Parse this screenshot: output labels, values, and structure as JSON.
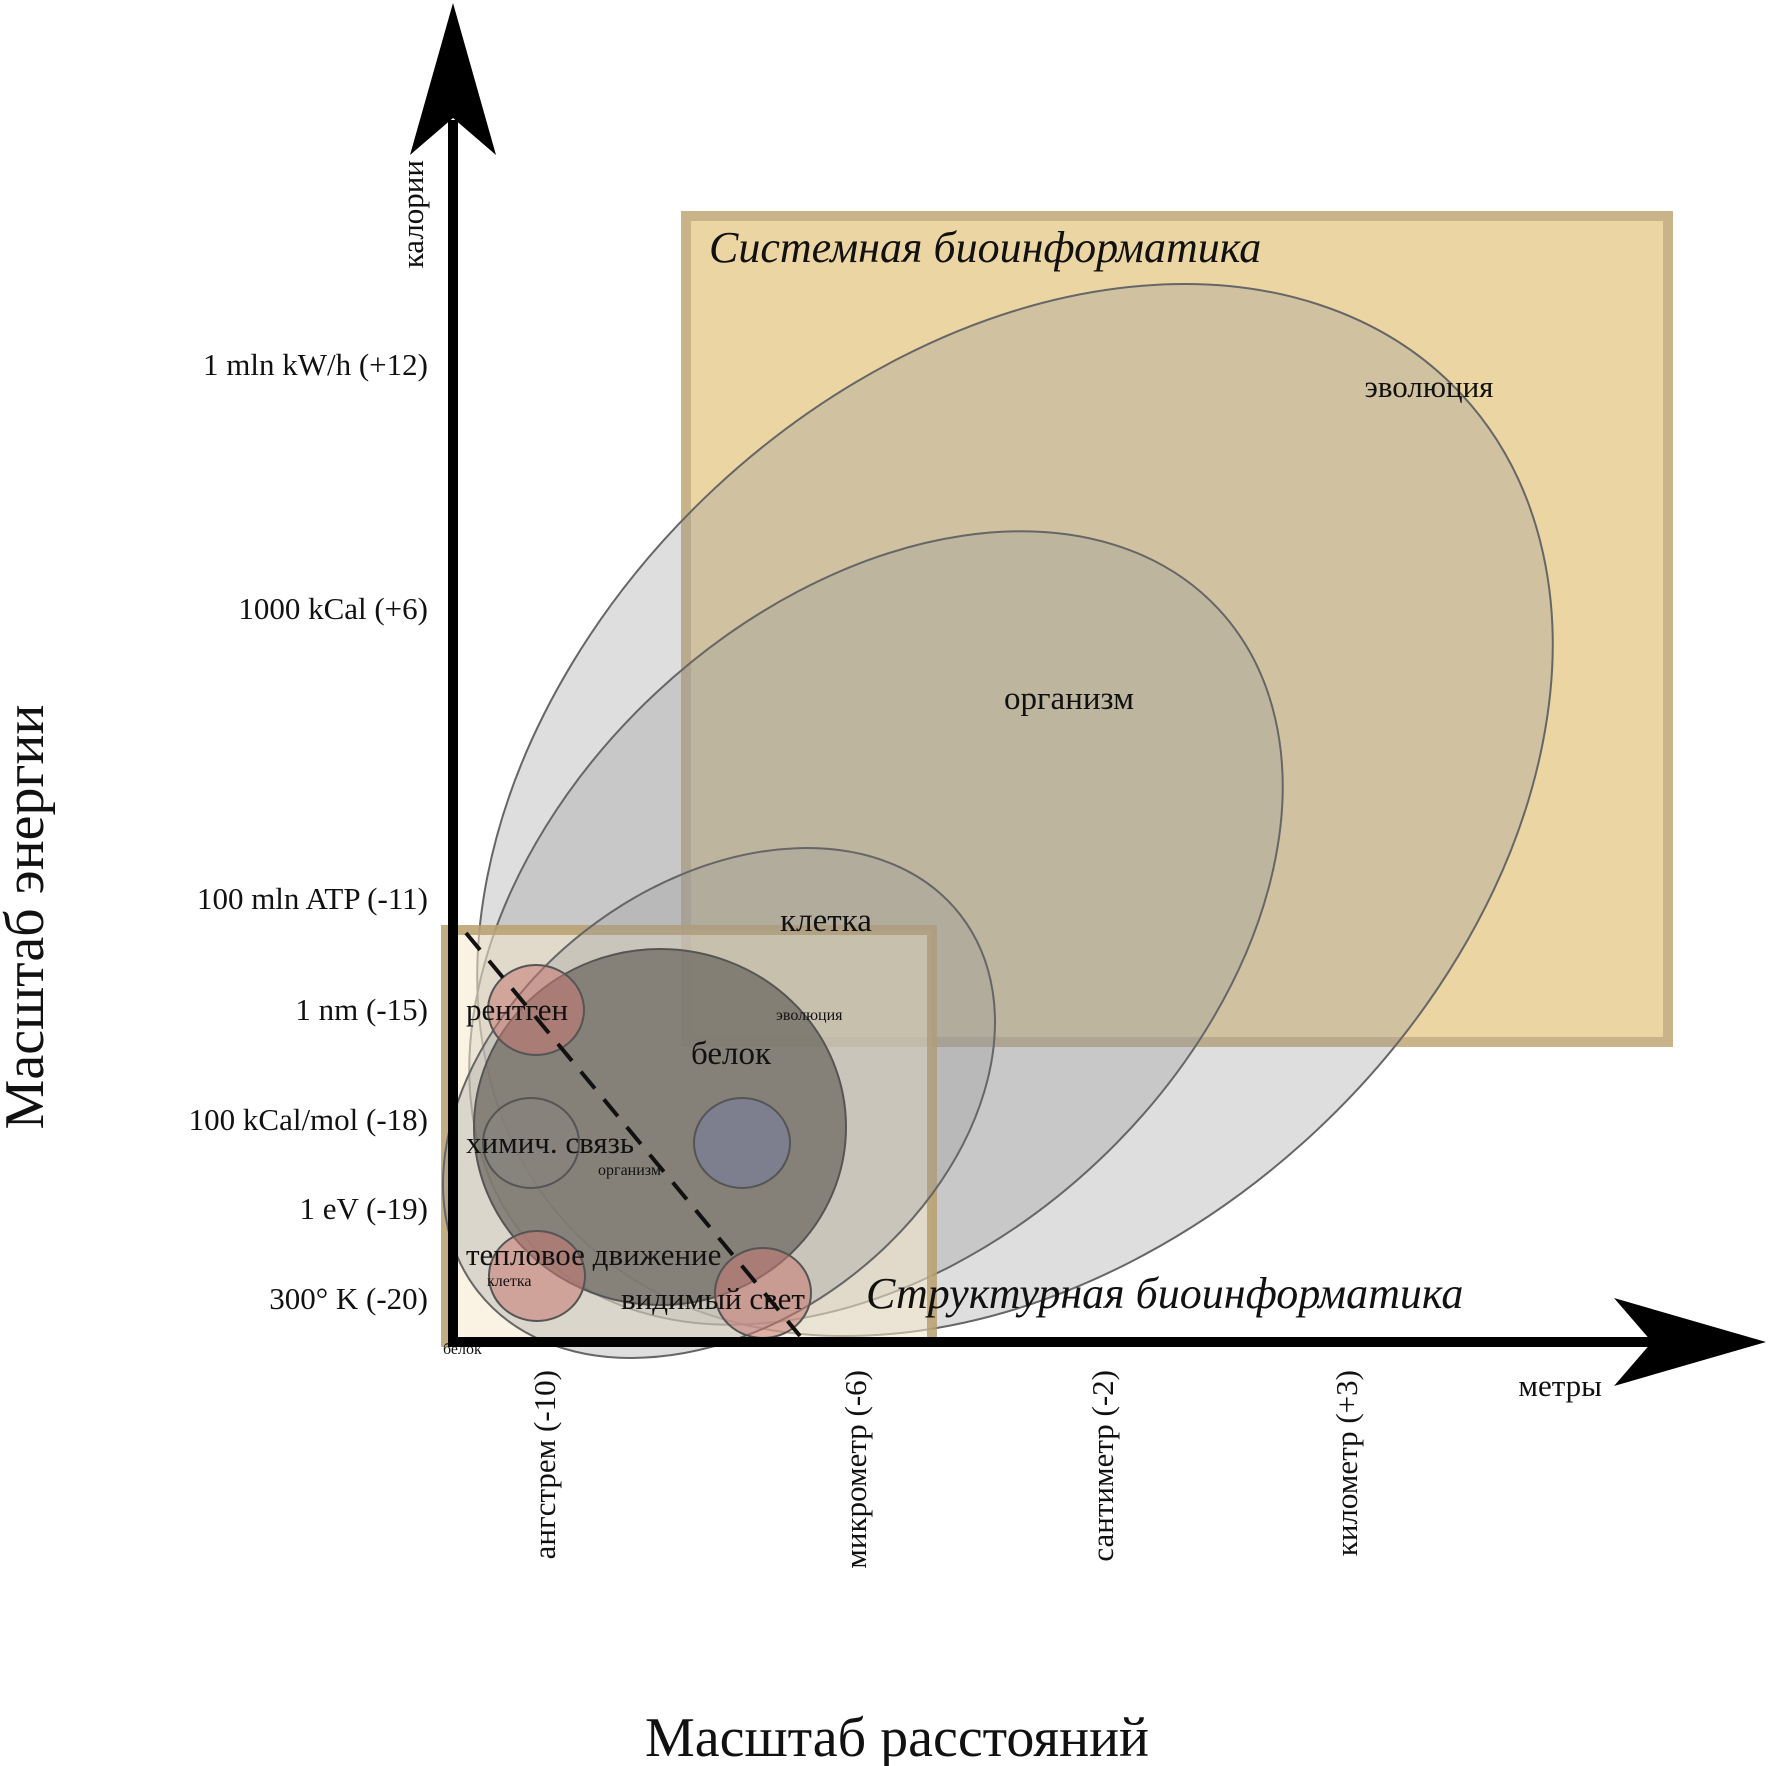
{
  "title_x": "Масштаб расстояний",
  "title_y": "Масштаб энергии",
  "axis_unit_x": "метры",
  "axis_unit_y": "калории",
  "y_ticks": [
    "1 mln kW/h (+12)",
    "1000 kCal (+6)",
    "100 mln ATP (-11)",
    "1 nm (-15)",
    "100 kCal/mol (-18)",
    "1 eV (-19)",
    "300° K (-20)"
  ],
  "x_ticks": [
    "ангстрем (-10)",
    "микрометр (-6)",
    "сантиметр (-2)",
    "километр (+3)"
  ],
  "regions": {
    "systems": "Системная биоинформатика",
    "structural": "Структурная биоинформатика"
  },
  "ellipses": {
    "evolution": "эволюция",
    "organism": "организм",
    "cell": "клетка",
    "protein": "белок"
  },
  "small_labels": {
    "evolution": "эволюция",
    "organism": "организм",
    "cell": "клетка",
    "protein": "белок"
  },
  "phenomena": {
    "xray": "рентген",
    "chem_bond": "химич. связь",
    "thermal": "тепловое движение",
    "visible_light": "видимый свет"
  },
  "colors": {
    "systems_fill": "#ebd5a3",
    "structural_fill": "#f5e9cc",
    "region_border": "#b89f6e",
    "ellipse_fill": "#9a9a9a",
    "protein_fill": "#6e6a62",
    "marker_red": "#c77a72",
    "marker_blue": "#7b7f95",
    "axis": "#000000"
  }
}
